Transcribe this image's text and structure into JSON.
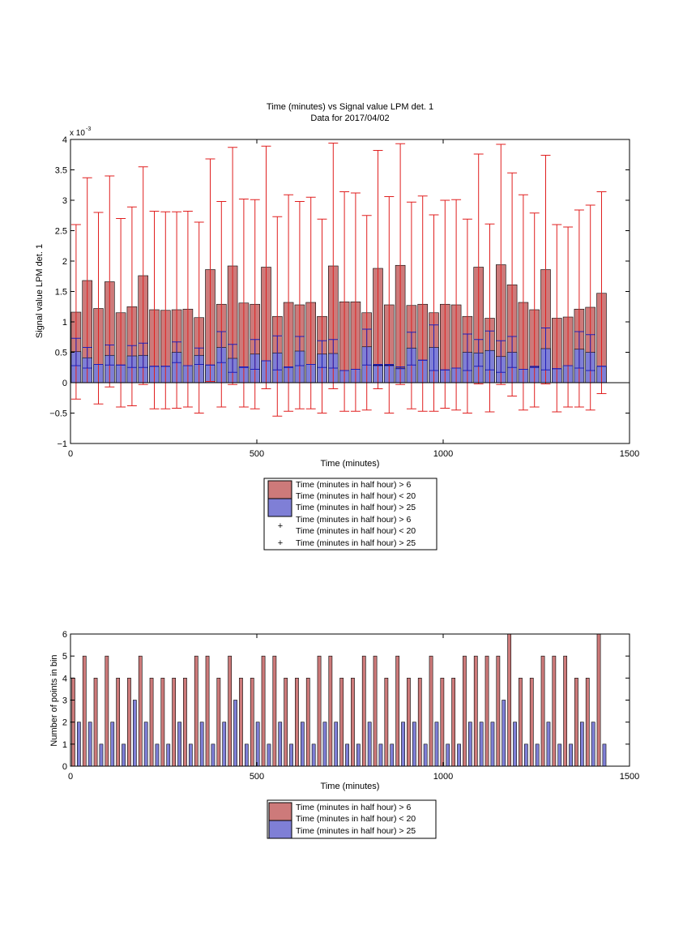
{
  "chart_data": [
    {
      "type": "bar",
      "title": "Time (minutes) vs Signal value LPM det. 1",
      "subtitle": "Data for 2017/04/02",
      "xlabel": "Time (minutes)",
      "ylabel": "Signal value LPM det. 1",
      "y_multiplier": "x 10",
      "y_exponent": "-3",
      "xlim": [
        0,
        1500
      ],
      "ylim": [
        -1,
        4
      ],
      "x_ticks": [
        0,
        500,
        1000,
        1500
      ],
      "x_tick_labels": [
        "0",
        "500",
        "1000",
        "1500"
      ],
      "y_ticks": [
        -1,
        -0.5,
        0,
        0.5,
        1,
        1.5,
        2,
        2.5,
        3,
        3.5,
        4
      ],
      "y_tick_labels": [
        "−1",
        "−0.5",
        "0",
        "0.5",
        "1",
        "1.5",
        "2",
        "2.5",
        "3",
        "3.5",
        "4"
      ],
      "x": [
        15,
        45,
        75,
        105,
        135,
        165,
        195,
        225,
        255,
        285,
        315,
        345,
        375,
        405,
        435,
        465,
        495,
        525,
        555,
        585,
        615,
        645,
        675,
        705,
        735,
        765,
        795,
        825,
        855,
        885,
        915,
        945,
        975,
        1005,
        1035,
        1065,
        1095,
        1125,
        1155,
        1185,
        1215,
        1245,
        1275,
        1305,
        1335,
        1365,
        1395,
        1425
      ],
      "grid": false,
      "legend_position": "below",
      "legend": [
        {
          "line1": "Time (minutes in half hour) > 6",
          "line2": "Time (minutes in half hour) < 20",
          "kind": "patch",
          "color": "#cd7a7a"
        },
        {
          "line1": "Time (minutes in half hour) > 25",
          "line2": "",
          "kind": "patch",
          "color": "#7f7fd6"
        },
        {
          "line1": "Time (minutes in half hour) > 6",
          "line2": "Time (minutes in half hour) < 20",
          "kind": "marker",
          "color": "#e01f1f"
        },
        {
          "line1": "Time (minutes in half hour) > 25",
          "line2": "",
          "kind": "marker",
          "color": "#1f1fb8"
        }
      ],
      "series": [
        {
          "name": "Time (minutes in half hour) > 6 and < 20",
          "color": "#cd7a7a",
          "err_color": "#e01f1f",
          "values": [
            1.16,
            1.68,
            1.22,
            1.66,
            1.15,
            1.25,
            1.76,
            1.2,
            1.19,
            1.2,
            1.21,
            1.07,
            1.86,
            1.29,
            1.92,
            1.31,
            1.29,
            1.9,
            1.09,
            1.32,
            1.28,
            1.32,
            1.09,
            1.92,
            1.33,
            1.33,
            1.15,
            1.88,
            1.28,
            1.93,
            1.27,
            1.29,
            1.15,
            1.29,
            1.28,
            1.09,
            1.9,
            1.06,
            1.94,
            1.61,
            1.32,
            1.2,
            1.86,
            1.06,
            1.08,
            1.21,
            1.24,
            1.47
          ],
          "err_low": [
            -0.27,
            0.0,
            -0.35,
            -0.07,
            -0.4,
            -0.38,
            -0.03,
            -0.43,
            -0.43,
            -0.42,
            -0.4,
            -0.5,
            0.02,
            -0.4,
            -0.03,
            -0.4,
            -0.43,
            -0.1,
            -0.55,
            -0.47,
            -0.43,
            -0.43,
            -0.5,
            -0.1,
            -0.47,
            -0.47,
            -0.45,
            -0.1,
            -0.5,
            -0.03,
            -0.43,
            -0.47,
            -0.47,
            -0.42,
            -0.45,
            -0.5,
            -0.02,
            -0.48,
            -0.03,
            -0.22,
            -0.45,
            -0.4,
            -0.02,
            -0.48,
            -0.4,
            -0.4,
            -0.45,
            -0.18
          ],
          "err_high": [
            2.6,
            3.37,
            2.8,
            3.4,
            2.7,
            2.89,
            3.55,
            2.82,
            2.81,
            2.81,
            2.82,
            2.64,
            3.68,
            2.98,
            3.87,
            3.02,
            3.01,
            3.89,
            2.73,
            3.09,
            2.98,
            3.05,
            2.69,
            3.94,
            3.14,
            3.12,
            2.75,
            3.82,
            3.06,
            3.93,
            2.97,
            3.07,
            2.76,
            3.0,
            3.01,
            2.69,
            3.76,
            2.61,
            3.92,
            3.45,
            3.09,
            2.79,
            3.74,
            2.6,
            2.56,
            2.84,
            2.92,
            3.14
          ]
        },
        {
          "name": "Time (minutes in half hour) > 25",
          "color": "#7f7fd6",
          "err_color": "#1f1fb8",
          "values": [
            0.51,
            0.41,
            0.3,
            0.45,
            0.29,
            0.44,
            0.45,
            0.27,
            0.27,
            0.5,
            0.28,
            0.45,
            0.29,
            0.58,
            0.4,
            0.26,
            0.47,
            0.36,
            0.49,
            0.26,
            0.52,
            0.3,
            0.47,
            0.48,
            0.2,
            0.22,
            0.59,
            0.29,
            0.29,
            0.24,
            0.57,
            0.37,
            0.58,
            0.21,
            0.24,
            0.5,
            0.49,
            0.53,
            0.43,
            0.5,
            0.22,
            0.26,
            0.56,
            0.23,
            0.28,
            0.55,
            0.5,
            0.27
          ],
          "err_low": [
            0.28,
            0.24,
            0.3,
            0.29,
            0.29,
            0.25,
            0.25,
            0.27,
            0.27,
            0.33,
            0.28,
            0.3,
            0.29,
            0.33,
            0.17,
            0.25,
            0.22,
            0.36,
            0.21,
            0.25,
            0.28,
            0.3,
            0.25,
            0.24,
            0.2,
            0.22,
            0.29,
            0.28,
            0.28,
            0.23,
            0.29,
            0.37,
            0.2,
            0.21,
            0.24,
            0.2,
            0.27,
            0.21,
            0.17,
            0.25,
            0.22,
            0.25,
            0.21,
            0.23,
            0.28,
            0.24,
            0.2,
            0.27
          ],
          "err_high": [
            0.73,
            0.58,
            0.3,
            0.62,
            0.29,
            0.61,
            0.65,
            0.27,
            0.27,
            0.67,
            0.28,
            0.57,
            0.29,
            0.84,
            0.63,
            0.26,
            0.71,
            0.36,
            0.77,
            0.26,
            0.76,
            0.3,
            0.69,
            0.71,
            0.2,
            0.22,
            0.88,
            0.3,
            0.3,
            0.26,
            0.83,
            0.37,
            0.95,
            0.21,
            0.24,
            0.8,
            0.71,
            0.85,
            0.69,
            0.76,
            0.22,
            0.27,
            0.9,
            0.23,
            0.28,
            0.84,
            0.79,
            0.27
          ]
        }
      ]
    },
    {
      "type": "bar",
      "xlabel": "Time (minutes)",
      "ylabel": "Number of points in bin",
      "xlim": [
        0,
        1500
      ],
      "ylim": [
        0,
        6
      ],
      "x_ticks": [
        0,
        500,
        1000,
        1500
      ],
      "x_tick_labels": [
        "0",
        "500",
        "1000",
        "1500"
      ],
      "y_ticks": [
        0,
        1,
        2,
        3,
        4,
        5,
        6
      ],
      "y_tick_labels": [
        "0",
        "1",
        "2",
        "3",
        "4",
        "5",
        "6"
      ],
      "x": [
        15,
        45,
        75,
        105,
        135,
        165,
        195,
        225,
        255,
        285,
        315,
        345,
        375,
        405,
        435,
        465,
        495,
        525,
        555,
        585,
        615,
        645,
        675,
        705,
        735,
        765,
        795,
        825,
        855,
        885,
        915,
        945,
        975,
        1005,
        1035,
        1065,
        1095,
        1125,
        1155,
        1185,
        1215,
        1245,
        1275,
        1305,
        1335,
        1365,
        1395,
        1425
      ],
      "grid": false,
      "legend_position": "below",
      "legend": [
        {
          "line1": "Time (minutes in half hour) > 6",
          "line2": "Time (minutes in half hour) < 20",
          "kind": "patch",
          "color": "#cd7a7a"
        },
        {
          "line1": "Time (minutes in half hour) > 25",
          "line2": "",
          "kind": "patch",
          "color": "#7f7fd6"
        }
      ],
      "series": [
        {
          "name": "Time (minutes in half hour) > 6 and < 20",
          "color": "#cd7a7a",
          "values": [
            4,
            5,
            4,
            5,
            4,
            4,
            5,
            4,
            4,
            4,
            4,
            5,
            5,
            4,
            5,
            4,
            4,
            5,
            5,
            4,
            4,
            4,
            5,
            5,
            4,
            4,
            5,
            5,
            4,
            5,
            4,
            4,
            5,
            4,
            4,
            5,
            5,
            5,
            5,
            6,
            4,
            4,
            5,
            5,
            5,
            4,
            4,
            6
          ]
        },
        {
          "name": "Time (minutes in half hour) > 25",
          "color": "#7f7fd6",
          "values": [
            2,
            2,
            1,
            2,
            1,
            3,
            2,
            1,
            1,
            2,
            1,
            2,
            1,
            2,
            3,
            1,
            2,
            1,
            2,
            1,
            2,
            1,
            2,
            2,
            1,
            1,
            2,
            1,
            1,
            2,
            2,
            1,
            2,
            1,
            1,
            2,
            2,
            2,
            3,
            2,
            1,
            1,
            2,
            1,
            1,
            2,
            2,
            1
          ]
        }
      ]
    }
  ]
}
